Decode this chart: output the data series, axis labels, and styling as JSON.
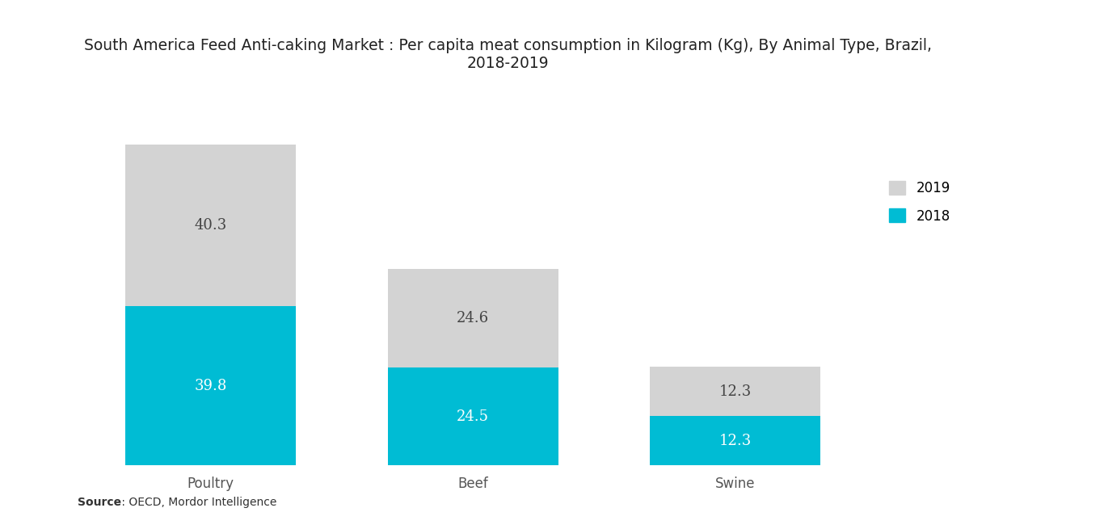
{
  "title": "South America Feed Anti-caking Market : Per capita meat consumption in Kilogram (Kg), By Animal Type, Brazil,\n2018-2019",
  "categories": [
    "Poultry",
    "Beef",
    "Swine"
  ],
  "values_2018": [
    39.8,
    24.5,
    12.3
  ],
  "values_2019": [
    40.3,
    24.6,
    12.3
  ],
  "color_2018": "#00bcd4",
  "color_2019": "#d3d3d3",
  "source_bold": "Source",
  "source_rest": " : OECD, Mordor Intelligence",
  "background_color": "#ffffff",
  "bar_width": 0.65,
  "title_fontsize": 13.5,
  "label_fontsize": 12,
  "tick_fontsize": 12,
  "annotation_fontsize": 13,
  "ylim": [
    0,
    95
  ],
  "x_positions": [
    0.15,
    0.45,
    0.72
  ],
  "fig_width": 13.66,
  "fig_height": 6.55
}
